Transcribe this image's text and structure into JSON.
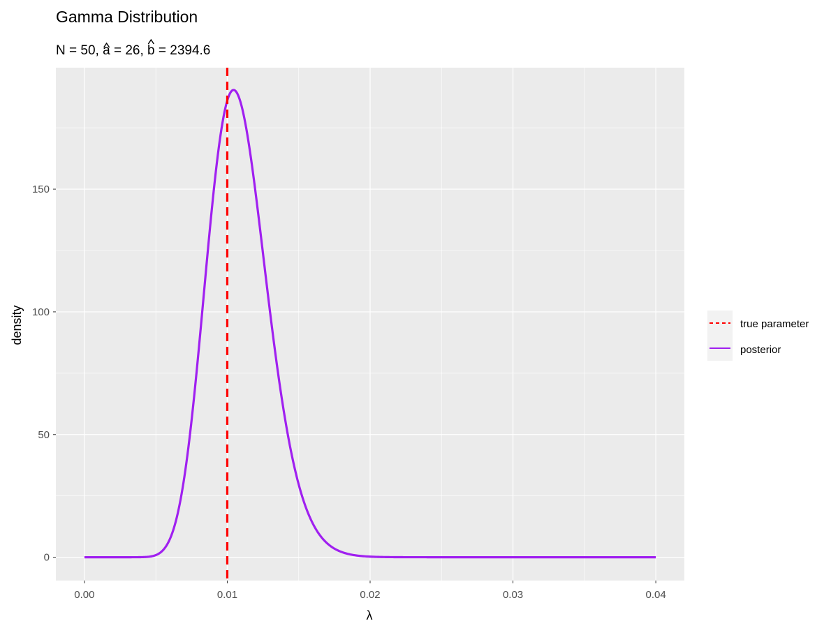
{
  "chart_data": {
    "type": "line",
    "title": "Gamma Distribution",
    "subtitle": {
      "n_label": "N",
      "n_value": "50",
      "a_label": "a",
      "a_value": "26",
      "b_label": "b",
      "b_value": "2394.6"
    },
    "xlabel": "λ",
    "ylabel": "density",
    "xlim": [
      -0.002,
      0.042
    ],
    "ylim": [
      -9.5,
      199.5
    ],
    "x_ticks": [
      0.0,
      0.01,
      0.02,
      0.03,
      0.04
    ],
    "x_tick_labels": [
      "0.00",
      "0.01",
      "0.02",
      "0.03",
      "0.04"
    ],
    "y_ticks": [
      0,
      50,
      100,
      150
    ],
    "y_tick_labels": [
      "0",
      "50",
      "100",
      "150"
    ],
    "grid": true,
    "legend_position": "right",
    "series": [
      {
        "name": "posterior",
        "style": "solid",
        "color": "#a020f0",
        "distribution": "gamma",
        "shape": 26,
        "rate": 2394.6,
        "x_range": [
          0,
          0.04
        ]
      }
    ],
    "reference_lines": [
      {
        "name": "true parameter",
        "style": "dashed",
        "color": "#ff0000",
        "x": 0.01
      }
    ],
    "legend": [
      "true parameter",
      "posterior"
    ]
  }
}
